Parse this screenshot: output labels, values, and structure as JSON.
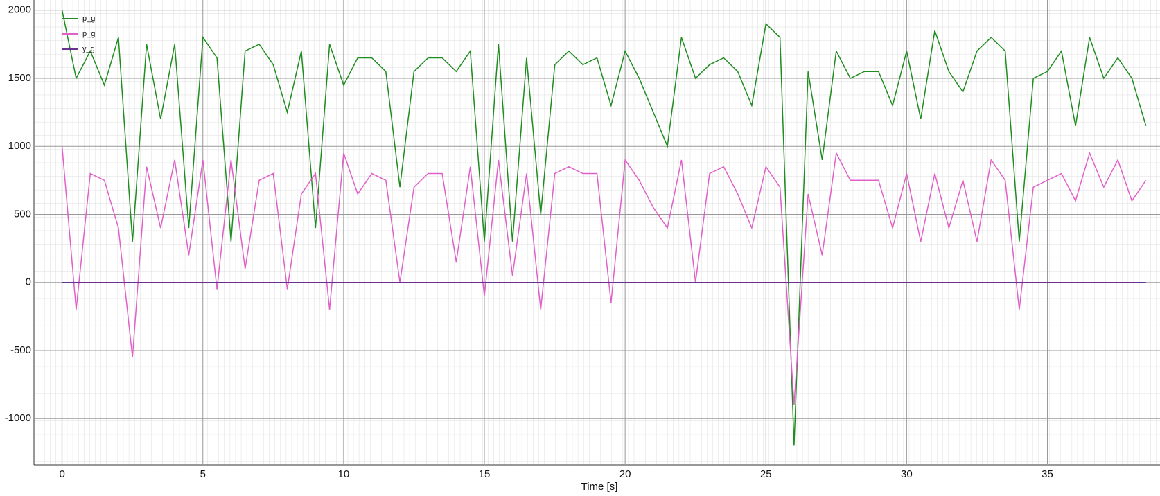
{
  "chart_data": {
    "type": "line",
    "xlabel": "Time [s]",
    "x": [
      0,
      0.5,
      1,
      1.5,
      2,
      2.5,
      3,
      3.5,
      4,
      4.5,
      5,
      5.5,
      6,
      6.5,
      7,
      7.5,
      8,
      8.5,
      9,
      9.5,
      10,
      10.5,
      11,
      11.5,
      12,
      12.5,
      13,
      13.5,
      14,
      14.5,
      15,
      15.5,
      16,
      16.5,
      17,
      17.5,
      18,
      18.5,
      19,
      19.5,
      20,
      20.5,
      21,
      21.5,
      22,
      22.5,
      23,
      23.5,
      24,
      24.5,
      25,
      25.5,
      26,
      26.5,
      27,
      27.5,
      28,
      28.5,
      29,
      29.5,
      30,
      30.5,
      31,
      31.5,
      32,
      32.5,
      33,
      33.5,
      34,
      34.5,
      35,
      35.5,
      36,
      36.5,
      37,
      37.5,
      38,
      38.5
    ],
    "series": [
      {
        "name": "p_g",
        "color": "#1e8c1e",
        "values": [
          2000,
          1500,
          1700,
          1450,
          1800,
          300,
          1750,
          1200,
          1750,
          400,
          1800,
          1650,
          300,
          1700,
          1750,
          1600,
          1250,
          1700,
          400,
          1750,
          1450,
          1650,
          1650,
          1550,
          700,
          1550,
          1650,
          1650,
          1550,
          1700,
          300,
          1750,
          300,
          1650,
          500,
          1600,
          1700,
          1600,
          1650,
          1300,
          1700,
          1500,
          1250,
          1000,
          1800,
          1500,
          1600,
          1650,
          1550,
          1300,
          1900,
          1800,
          -1200,
          1550,
          900,
          1700,
          1500,
          1550,
          1550,
          1300,
          1700,
          1200,
          1850,
          1550,
          1400,
          1700,
          1800,
          1700,
          300,
          1500,
          1550,
          1700,
          1150,
          1800,
          1500,
          1650,
          1500,
          1150
        ]
      },
      {
        "name": "p_g",
        "color": "#e060c8",
        "values": [
          1000,
          -200,
          800,
          750,
          400,
          -550,
          850,
          400,
          900,
          200,
          900,
          -50,
          900,
          100,
          750,
          800,
          -50,
          650,
          800,
          -200,
          950,
          650,
          800,
          750,
          0,
          700,
          800,
          800,
          150,
          850,
          -100,
          900,
          50,
          800,
          -200,
          800,
          850,
          800,
          800,
          -150,
          900,
          750,
          550,
          400,
          900,
          0,
          800,
          850,
          650,
          400,
          850,
          700,
          -900,
          650,
          200,
          950,
          750,
          750,
          750,
          400,
          800,
          300,
          800,
          400,
          750,
          300,
          900,
          750,
          -200,
          700,
          750,
          800,
          600,
          950,
          700,
          900,
          600,
          750
        ]
      },
      {
        "name": "y_g",
        "color": "#6a3090",
        "values": [
          0,
          0,
          0,
          0,
          0,
          0,
          0,
          0,
          0,
          0,
          0,
          0,
          0,
          0,
          0,
          0,
          0,
          0,
          0,
          0,
          0,
          0,
          0,
          0,
          0,
          0,
          0,
          0,
          0,
          0,
          0,
          0,
          0,
          0,
          0,
          0,
          0,
          0,
          0,
          0,
          0,
          0,
          0,
          0,
          0,
          0,
          0,
          0,
          0,
          0,
          0,
          0,
          0,
          0,
          0,
          0,
          0,
          0,
          0,
          0,
          0,
          0,
          0,
          0,
          0,
          0,
          0,
          0,
          0,
          0,
          0,
          0,
          0,
          0,
          0,
          0,
          0,
          0
        ]
      }
    ],
    "xlim": [
      -1,
      39
    ],
    "ylim": [
      -1340,
      2075
    ],
    "xticks": [
      0,
      5,
      10,
      15,
      20,
      25,
      30,
      35
    ],
    "yticks": [
      -1000,
      -500,
      0,
      500,
      1000,
      1500,
      2000
    ],
    "grid": true,
    "legend": "upper-left"
  }
}
